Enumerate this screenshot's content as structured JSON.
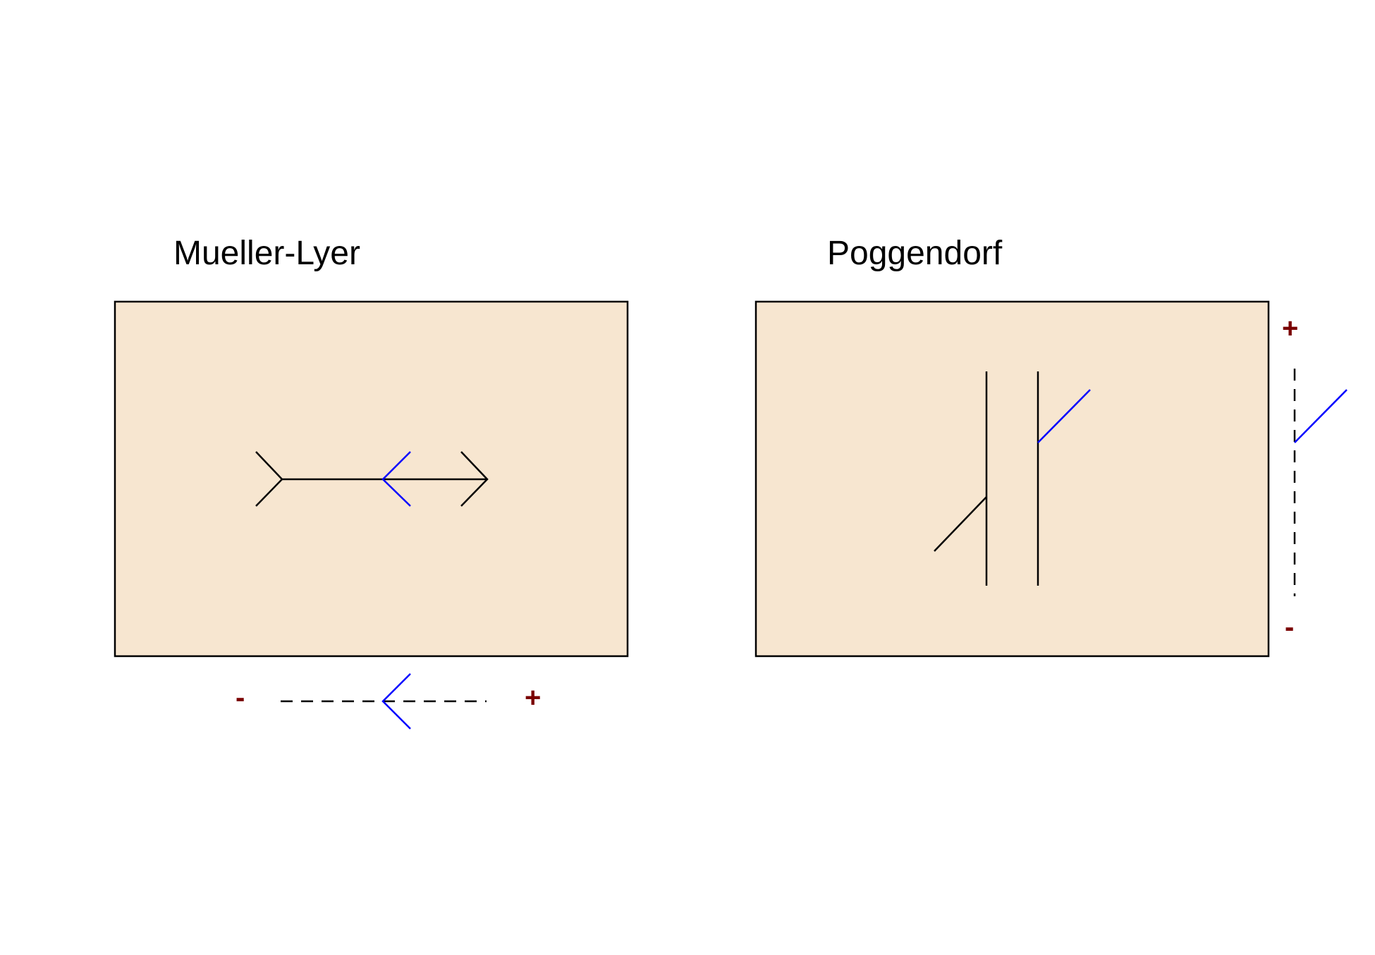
{
  "mueller_lyer": {
    "title": "Mueller-Lyer",
    "scale_minus": "-",
    "scale_plus": "+"
  },
  "poggendorf": {
    "title": "Poggendorf",
    "scale_plus": "+",
    "scale_minus": "-"
  },
  "colors": {
    "panel_fill": "#f7e6d0",
    "panel_border": "#000000",
    "figure_line": "#000000",
    "adjustable_line": "#0000ff",
    "scale_sign": "#7a0000"
  }
}
